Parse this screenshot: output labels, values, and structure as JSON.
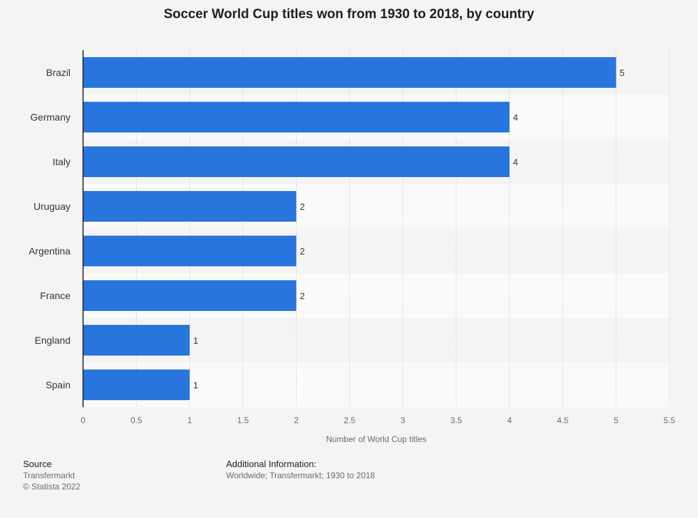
{
  "chart_data": {
    "type": "bar",
    "orientation": "horizontal",
    "title": "Soccer World Cup titles won from 1930 to 2018, by country",
    "categories": [
      "Brazil",
      "Germany",
      "Italy",
      "Uruguay",
      "Argentina",
      "France",
      "England",
      "Spain"
    ],
    "values": [
      5,
      4,
      4,
      2,
      2,
      2,
      1,
      1
    ],
    "xlabel": "Number of World Cup titles",
    "ylabel": "",
    "xlim": [
      0,
      5.5
    ],
    "xticks": [
      "0",
      "0.5",
      "1",
      "1.5",
      "2",
      "2.5",
      "3",
      "3.5",
      "4",
      "4.5",
      "5",
      "5.5"
    ],
    "grid": true,
    "bar_color": "#2876dd"
  },
  "footer": {
    "source_heading": "Source",
    "source_name": "Transfermarkt",
    "copyright": "© Statista 2022",
    "additional_heading": "Additional Information:",
    "additional_text": "Worldwide; Transfermarkt; 1930 to 2018"
  }
}
